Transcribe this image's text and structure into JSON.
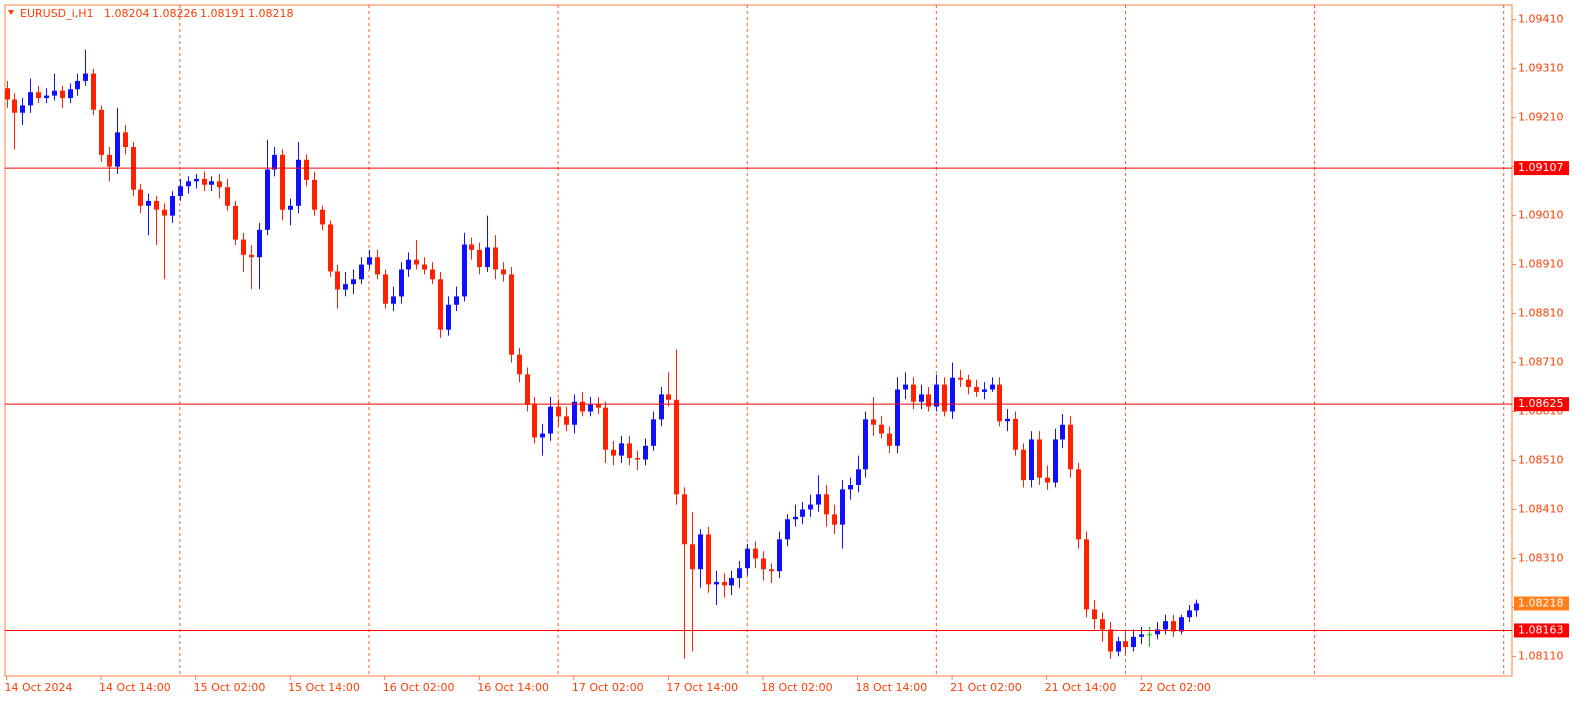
{
  "chart_data": {
    "type": "candlestick",
    "symbol": "EURUSD_i,H1",
    "categories": [
      "14 Oct 2024",
      null,
      null,
      null,
      null,
      null,
      null,
      null,
      null,
      null,
      null,
      null,
      "14 Oct 14:00",
      null,
      null,
      null,
      null,
      null,
      null,
      null,
      null,
      null,
      null,
      null,
      "15 Oct 02:00",
      null,
      null,
      null,
      null,
      null,
      null,
      null,
      null,
      null,
      null,
      null,
      "15 Oct 14:00",
      null,
      null,
      null,
      null,
      null,
      null,
      null,
      null,
      null,
      null,
      null,
      "16 Oct 02:00",
      null,
      null,
      null,
      null,
      null,
      null,
      null,
      null,
      null,
      null,
      null,
      "16 Oct 14:00",
      null,
      null,
      null,
      null,
      null,
      null,
      null,
      null,
      null,
      null,
      null,
      "17 Oct 02:00",
      null,
      null,
      null,
      null,
      null,
      null,
      null,
      null,
      null,
      null,
      null,
      "17 Oct 14:00",
      null,
      null,
      null,
      null,
      null,
      null,
      null,
      null,
      null,
      null,
      null,
      "18 Oct 02:00",
      null,
      null,
      null,
      null,
      null,
      null,
      null,
      null,
      null,
      null,
      null,
      "18 Oct 14:00",
      null,
      null,
      null,
      null,
      null,
      null,
      null,
      null,
      null,
      null,
      null,
      "21 Oct 02:00",
      null,
      null,
      null,
      null,
      null,
      null,
      null,
      null,
      null,
      null,
      null,
      "21 Oct 14:00",
      null,
      null,
      null,
      null,
      null,
      null,
      null,
      null,
      null,
      null,
      null,
      "22 Oct 02:00",
      null,
      null,
      null,
      null,
      null,
      null,
      null
    ],
    "open": [
      1.0927,
      1.09247,
      1.0922,
      1.09235,
      1.09262,
      1.0925,
      1.09255,
      1.09265,
      1.0925,
      1.09268,
      1.09285,
      1.093,
      1.09226,
      1.09134,
      1.0911,
      1.0918,
      1.0915,
      1.09063,
      1.0903,
      1.0904,
      1.09022,
      1.0901,
      1.0905,
      1.0907,
      1.0908,
      1.09085,
      1.09073,
      1.0908,
      1.09068,
      1.0903,
      1.08961,
      1.0893,
      1.08925,
      1.08981,
      1.09104,
      1.09134,
      1.09022,
      1.0903,
      1.09124,
      1.09083,
      1.09022,
      1.08992,
      1.08896,
      1.08859,
      1.0887,
      1.0888,
      1.0891,
      1.08925,
      1.0889,
      1.0883,
      1.08845,
      1.089,
      1.0892,
      1.0891,
      1.089,
      1.0888,
      1.08777,
      1.08828,
      1.08845,
      1.08951,
      1.0894,
      1.08905,
      1.08945,
      1.089,
      1.0889,
      1.08726,
      1.08686,
      1.08624,
      1.08557,
      1.08565,
      1.0862,
      1.086,
      1.08583,
      1.0863,
      1.0861,
      1.08624,
      1.08618,
      1.08532,
      1.0852,
      1.08545,
      1.08515,
      1.08512,
      1.0854,
      1.08594,
      1.08645,
      1.08634,
      1.08441,
      1.08339,
      1.08288,
      1.08359,
      1.08257,
      1.08262,
      1.08255,
      1.0827,
      1.0829,
      1.0833,
      1.0831,
      1.08288,
      1.08284,
      1.08349,
      1.0839,
      1.08395,
      1.0841,
      1.0842,
      1.08441,
      1.084,
      1.08379,
      1.08451,
      1.0846,
      1.08492,
      1.08594,
      1.08583,
      1.08565,
      1.0854,
      1.08655,
      1.08665,
      1.0863,
      1.08645,
      1.0862,
      1.08665,
      1.0861,
      1.08679,
      1.08675,
      1.0866,
      1.0865,
      1.08655,
      1.08665,
      1.0859,
      1.08595,
      1.08532,
      1.0847,
      1.08553,
      1.08475,
      1.08465,
      1.08553,
      1.08583,
      1.08492,
      1.08349,
      1.08206,
      1.08186,
      1.08165,
      1.0812,
      1.08141,
      1.08129,
      1.0815,
      1.08155,
      1.08155,
      1.08165,
      1.08182,
      1.08161,
      1.0819,
      1.08204
    ],
    "high": [
      1.09285,
      1.0926,
      1.0925,
      1.0929,
      1.09275,
      1.0927,
      1.093,
      1.09275,
      1.0928,
      1.093,
      1.09349,
      1.0931,
      1.09235,
      1.0915,
      1.0923,
      1.09195,
      1.0916,
      1.09075,
      1.09055,
      1.0905,
      1.09035,
      1.0906,
      1.09085,
      1.0909,
      1.09095,
      1.091,
      1.0909,
      1.09095,
      1.09085,
      1.0904,
      1.08975,
      1.0895,
      1.08995,
      1.09165,
      1.0915,
      1.09145,
      1.09045,
      1.0916,
      1.09135,
      1.091,
      1.0903,
      1.09,
      1.0891,
      1.08895,
      1.089,
      1.08925,
      1.0894,
      1.0894,
      1.089,
      1.08865,
      1.08915,
      1.08935,
      1.0896,
      1.08925,
      1.08915,
      1.08895,
      1.08845,
      1.08865,
      1.08975,
      1.08965,
      1.08955,
      1.0901,
      1.0897,
      1.08915,
      1.08905,
      1.0874,
      1.087,
      1.0864,
      1.08585,
      1.0864,
      1.08635,
      1.0862,
      1.08645,
      1.0865,
      1.0864,
      1.0864,
      1.0863,
      1.0855,
      1.0856,
      1.0856,
      1.0853,
      1.08555,
      1.0861,
      1.0866,
      1.0869,
      1.08737,
      1.08455,
      1.08405,
      1.0837,
      1.08375,
      1.08285,
      1.0828,
      1.08285,
      1.08305,
      1.0834,
      1.08345,
      1.08325,
      1.083,
      1.08365,
      1.084,
      1.0842,
      1.08425,
      1.0844,
      1.0848,
      1.0846,
      1.0842,
      1.0847,
      1.08475,
      1.0852,
      1.0861,
      1.0864,
      1.086,
      1.0858,
      1.0868,
      1.0869,
      1.0868,
      1.08665,
      1.0866,
      1.08685,
      1.0868,
      1.0871,
      1.08695,
      1.08685,
      1.08675,
      1.0867,
      1.0868,
      1.0868,
      1.08615,
      1.0861,
      1.08545,
      1.0857,
      1.0857,
      1.085,
      1.08575,
      1.08605,
      1.086,
      1.08505,
      1.08365,
      1.08225,
      1.082,
      1.0818,
      1.0815,
      1.0816,
      1.08165,
      1.0817,
      1.0817,
      1.0818,
      1.08195,
      1.08195,
      1.08195,
      1.08215,
      1.08226
    ],
    "low": [
      1.0923,
      1.09145,
      1.09195,
      1.0922,
      1.0924,
      1.0924,
      1.09245,
      1.0923,
      1.0924,
      1.09255,
      1.09275,
      1.09215,
      1.0912,
      1.0908,
      1.09095,
      1.09135,
      1.0905,
      1.09015,
      1.0897,
      1.0895,
      1.0888,
      1.08995,
      1.0904,
      1.09055,
      1.09065,
      1.0906,
      1.0906,
      1.09045,
      1.0902,
      1.0895,
      1.08895,
      1.0886,
      1.0886,
      1.0897,
      1.0909,
      1.09,
      1.0899,
      1.09015,
      1.0907,
      1.0901,
      1.0898,
      1.08885,
      1.0882,
      1.08845,
      1.0885,
      1.0887,
      1.089,
      1.0888,
      1.0882,
      1.08815,
      1.0883,
      1.08885,
      1.089,
      1.0889,
      1.0887,
      1.0876,
      1.08765,
      1.08815,
      1.08835,
      1.0892,
      1.0889,
      1.08895,
      1.0888,
      1.08875,
      1.0871,
      1.0867,
      1.0861,
      1.08545,
      1.0852,
      1.0855,
      1.0858,
      1.0857,
      1.08565,
      1.086,
      1.086,
      1.08605,
      1.08505,
      1.085,
      1.08505,
      1.085,
      1.0849,
      1.085,
      1.0853,
      1.0858,
      1.0862,
      1.0842,
      1.08105,
      1.0812,
      1.0825,
      1.0824,
      1.08215,
      1.0823,
      1.08235,
      1.0825,
      1.08275,
      1.0829,
      1.08265,
      1.0826,
      1.0827,
      1.08335,
      1.08375,
      1.0838,
      1.08395,
      1.08405,
      1.08375,
      1.0836,
      1.0833,
      1.0843,
      1.08445,
      1.08475,
      1.0856,
      1.08555,
      1.08525,
      1.08525,
      1.08635,
      1.08615,
      1.08615,
      1.0861,
      1.0861,
      1.086,
      1.08595,
      1.0866,
      1.08645,
      1.0864,
      1.08635,
      1.0865,
      1.0858,
      1.0857,
      1.0852,
      1.08455,
      1.08455,
      1.0846,
      1.0845,
      1.08455,
      1.08535,
      1.08475,
      1.0833,
      1.0819,
      1.08165,
      1.0814,
      1.08105,
      1.0811,
      1.08115,
      1.0812,
      1.08135,
      1.0813,
      1.08145,
      1.08155,
      1.0815,
      1.08155,
      1.0818,
      1.08191
    ],
    "close": [
      1.09247,
      1.0922,
      1.09235,
      1.09262,
      1.0925,
      1.09255,
      1.09265,
      1.0925,
      1.09268,
      1.09285,
      1.093,
      1.09226,
      1.09134,
      1.0911,
      1.0918,
      1.0915,
      1.09063,
      1.0903,
      1.0904,
      1.09022,
      1.0901,
      1.0905,
      1.0907,
      1.0908,
      1.09085,
      1.09073,
      1.0908,
      1.09068,
      1.0903,
      1.08961,
      1.0893,
      1.08925,
      1.08981,
      1.09104,
      1.09134,
      1.09022,
      1.0903,
      1.09124,
      1.09083,
      1.09022,
      1.08992,
      1.08896,
      1.08859,
      1.0887,
      1.0888,
      1.0891,
      1.08925,
      1.0889,
      1.0883,
      1.08845,
      1.089,
      1.0892,
      1.0891,
      1.089,
      1.0888,
      1.08777,
      1.08828,
      1.08845,
      1.08951,
      1.0894,
      1.08905,
      1.08945,
      1.089,
      1.0889,
      1.08726,
      1.08686,
      1.08624,
      1.08557,
      1.08565,
      1.0862,
      1.086,
      1.08583,
      1.0863,
      1.0861,
      1.08624,
      1.08618,
      1.08532,
      1.0852,
      1.08545,
      1.08515,
      1.08512,
      1.0854,
      1.08594,
      1.08645,
      1.08634,
      1.08441,
      1.08339,
      1.08288,
      1.08359,
      1.08257,
      1.08262,
      1.08255,
      1.0827,
      1.0829,
      1.0833,
      1.0831,
      1.08288,
      1.08284,
      1.08349,
      1.0839,
      1.08395,
      1.0841,
      1.0842,
      1.08441,
      1.084,
      1.08379,
      1.08451,
      1.0846,
      1.08492,
      1.08594,
      1.08583,
      1.08565,
      1.0854,
      1.08655,
      1.08665,
      1.0863,
      1.08645,
      1.0862,
      1.08665,
      1.0861,
      1.08679,
      1.08675,
      1.0866,
      1.0865,
      1.08655,
      1.08665,
      1.0859,
      1.08595,
      1.08532,
      1.0847,
      1.08553,
      1.08475,
      1.08465,
      1.08553,
      1.08583,
      1.08492,
      1.08349,
      1.08206,
      1.08186,
      1.08165,
      1.0812,
      1.08141,
      1.08129,
      1.0815,
      1.08155,
      1.08155,
      1.08165,
      1.08182,
      1.08161,
      1.0819,
      1.08204,
      1.08218
    ],
    "up_color": "#1010ff",
    "down_color": "#ff2200",
    "doji_color": "#00c000",
    "ylim": [
      1.0807,
      1.0944
    ],
    "yticks": [
      {
        "value": 1.0811,
        "label": "1.08110"
      },
      {
        "value": 1.0821,
        "label": "1.08210"
      },
      {
        "value": 1.0831,
        "label": "1.08310"
      },
      {
        "value": 1.0841,
        "label": "1.08410"
      },
      {
        "value": 1.0851,
        "label": "1.08510"
      },
      {
        "value": 1.0861,
        "label": "1.08610"
      },
      {
        "value": 1.0871,
        "label": "1.08710"
      },
      {
        "value": 1.0881,
        "label": "1.08810"
      },
      {
        "value": 1.0891,
        "label": "1.08910"
      },
      {
        "value": 1.0901,
        "label": "1.09010"
      },
      {
        "value": 1.0911,
        "label": "1.09110"
      },
      {
        "value": 1.0921,
        "label": "1.09210"
      },
      {
        "value": 1.0931,
        "label": "1.09310"
      },
      {
        "value": 1.0941,
        "label": "1.09410"
      }
    ],
    "levels": [
      1.09107,
      1.08625,
      1.08163
    ],
    "level_color": "#ff0000",
    "current_color": "#ff7f1a",
    "grid": true
  }
}
